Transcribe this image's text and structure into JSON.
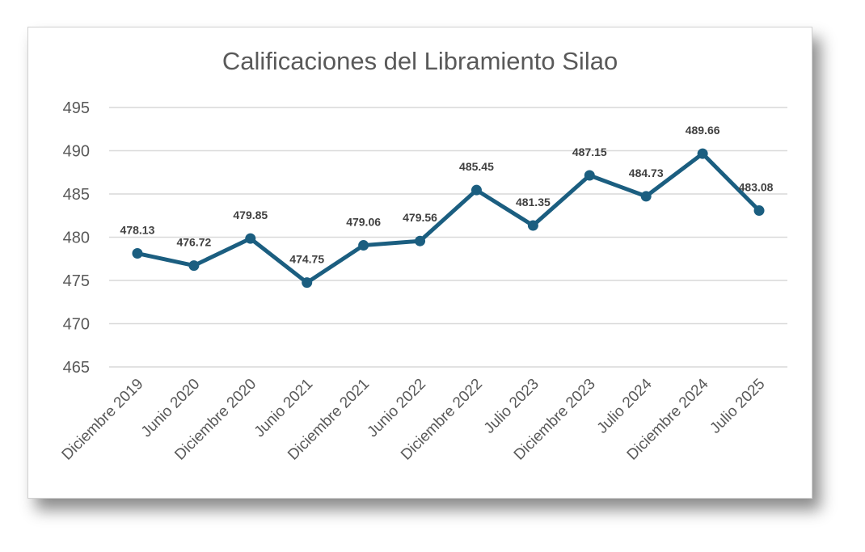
{
  "chart_data": {
    "type": "line",
    "title": "Calificaciones del Libramiento Silao",
    "categories": [
      "Diciembre 2019",
      "Junio 2020",
      "Diciembre 2020",
      "Junio 2021",
      "Diciembre 2021",
      "Junio 2022",
      "Diciembre 2022",
      "Julio 2023",
      "Diciembre 2023",
      "Julio 2024",
      "Diciembre 2024",
      "Julio 2025"
    ],
    "values": [
      478.13,
      476.72,
      479.85,
      474.75,
      479.06,
      479.56,
      485.45,
      481.35,
      487.15,
      484.73,
      489.66,
      483.08
    ],
    "data_labels": [
      "478.13",
      "476.72",
      "479.85",
      "474.75",
      "479.06",
      "479.56",
      "485.45",
      "481.35",
      "487.15",
      "484.73",
      "489.66",
      "483.08"
    ],
    "y_ticks": [
      "465",
      "470",
      "475",
      "480",
      "485",
      "490",
      "495"
    ],
    "ylim": [
      465,
      495
    ],
    "xlabel": "",
    "ylabel": "",
    "grid": true,
    "legend": "none",
    "line_color": "#1B5E80",
    "grid_color": "#D9D9D9"
  }
}
